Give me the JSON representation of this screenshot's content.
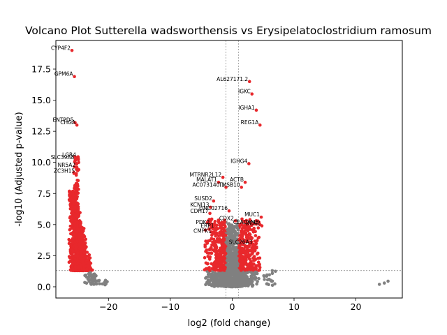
{
  "chart_data": {
    "type": "scatter",
    "title": "Volcano Plot Sutterella wadsworthensis vs Erysipelatoclostridium ramosum",
    "xlabel": "log2 (fold change)",
    "ylabel": "-log10 (Adjusted p-value)",
    "xlim": [
      -28.5,
      27.5
    ],
    "ylim": [
      -0.9,
      19.8
    ],
    "xticks": [
      -20,
      -10,
      0,
      10,
      20
    ],
    "yticks": [
      0.0,
      2.5,
      5.0,
      7.5,
      10.0,
      12.5,
      15.0,
      17.5
    ],
    "xtick_labels": [
      "−20",
      "−10",
      "0",
      "10",
      "20"
    ],
    "ytick_labels": [
      "0.0",
      "2.5",
      "5.0",
      "7.5",
      "10.0",
      "12.5",
      "15.0",
      "17.5"
    ],
    "thresholds": {
      "log2fc": [
        -1,
        1
      ],
      "neg_log10_padj": 1.3
    },
    "grid": false,
    "colors": {
      "significant": "#e8282c",
      "nonsignificant": "#808080",
      "threshold_line": "#808080"
    },
    "labeled_points": [
      {
        "label": "CYP4F2",
        "x": -25.9,
        "y": 19.0
      },
      {
        "label": "GPM6A",
        "x": -25.5,
        "y": 16.9
      },
      {
        "label": "AL627171.2",
        "x": 2.8,
        "y": 16.5
      },
      {
        "label": "IGKC",
        "x": 3.2,
        "y": 15.5
      },
      {
        "label": "IGHA1",
        "x": 3.9,
        "y": 14.2
      },
      {
        "label": "ENTPD5",
        "x": -25.4,
        "y": 13.2
      },
      {
        "label": "CHGA",
        "x": -25.1,
        "y": 13.0
      },
      {
        "label": "REG1A",
        "x": 4.5,
        "y": 13.0
      },
      {
        "label": "LGR4",
        "x": -25.0,
        "y": 10.4
      },
      {
        "label": "SLC39A8",
        "x": -25.3,
        "y": 10.2
      },
      {
        "label": "IGHG4",
        "x": 2.7,
        "y": 9.9
      },
      {
        "label": "NR5A2",
        "x": -25.1,
        "y": 9.6
      },
      {
        "label": "ZC3H15",
        "x": -25.2,
        "y": 9.1
      },
      {
        "label": "MTRNR2L12",
        "x": -1.5,
        "y": 8.8
      },
      {
        "label": "MALAT1",
        "x": -2.2,
        "y": 8.4
      },
      {
        "label": "ACTB",
        "x": 2.1,
        "y": 8.4
      },
      {
        "label": "AC073140.1",
        "x": -1.0,
        "y": 8.0
      },
      {
        "label": "TMSB10",
        "x": 1.5,
        "y": 8.0
      },
      {
        "label": "SUSD2",
        "x": -3.0,
        "y": 6.9
      },
      {
        "label": "KCNJ13",
        "x": -3.5,
        "y": 6.4
      },
      {
        "label": "CDH17",
        "x": -3.6,
        "y": 5.9
      },
      {
        "label": "LINC02716",
        "x": -0.5,
        "y": 6.1
      },
      {
        "label": "MUC1",
        "x": 4.7,
        "y": 5.6
      },
      {
        "label": "PDK2",
        "x": -3.4,
        "y": 5.0
      },
      {
        "label": "CDX2",
        "x": 0.5,
        "y": 5.3
      },
      {
        "label": "CEACAM5",
        "x": 4.5,
        "y": 5.0
      },
      {
        "label": "DCN2",
        "x": 4.8,
        "y": 4.9
      },
      {
        "label": "ERP1",
        "x": -2.7,
        "y": 4.7
      },
      {
        "label": "CMPK1",
        "x": -3.1,
        "y": 4.3
      },
      {
        "label": "SLC26A3",
        "x": 3.5,
        "y": 3.4
      }
    ]
  }
}
